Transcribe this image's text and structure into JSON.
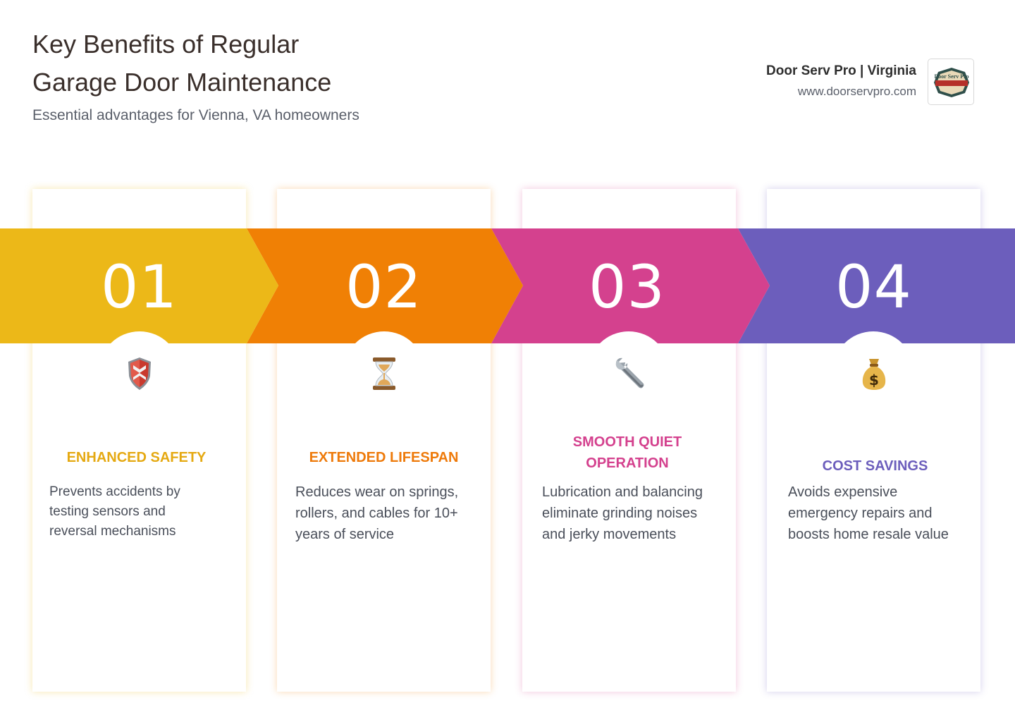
{
  "header": {
    "title_line1": "Key Benefits of Regular",
    "title_line2": "Garage Door Maintenance",
    "subtitle": "Essential advantages for Vienna, VA homeowners"
  },
  "brand": {
    "name": "Door Serv Pro | Virginia",
    "url": "www.doorservpro.com",
    "logo_text": "Door Serv Pro"
  },
  "colors": {
    "step1": "#ECB818",
    "step2": "#F08005",
    "step3": "#D4418E",
    "step4": "#6C5EBC"
  },
  "steps": [
    {
      "number": "01",
      "icon": "shield-icon",
      "title": "ENHANCED SAFETY",
      "description": "Prevents accidents by testing sensors and reversal mechanisms"
    },
    {
      "number": "02",
      "icon": "hourglass-icon",
      "title": "EXTENDED LIFESPAN",
      "description": "Reduces wear on springs, rollers, and cables for 10+ years of service"
    },
    {
      "number": "03",
      "icon": "wrench-icon",
      "title": "SMOOTH QUIET OPERATION",
      "description": "Lubrication and balancing eliminate grinding noises and jerky movements"
    },
    {
      "number": "04",
      "icon": "money-bag-icon",
      "title": "COST SAVINGS",
      "description": "Avoids expensive emergency repairs and boosts home resale value"
    }
  ]
}
